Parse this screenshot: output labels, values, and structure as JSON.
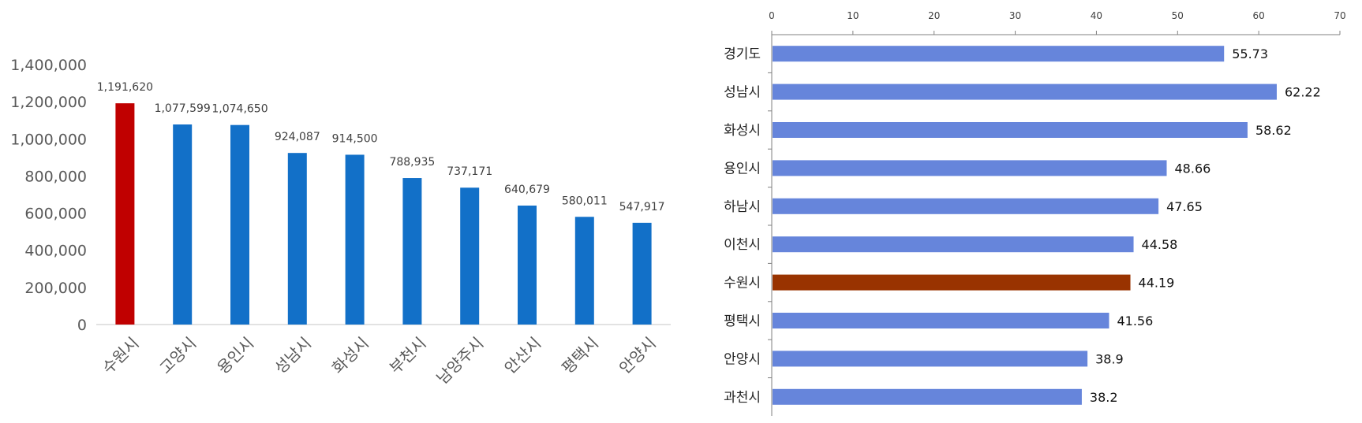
{
  "chart_data": [
    {
      "type": "bar",
      "orientation": "vertical",
      "categories": [
        "수원시",
        "고양시",
        "용인시",
        "성남시",
        "화성시",
        "부천시",
        "남양주시",
        "안산시",
        "평택시",
        "안양시"
      ],
      "values": [
        1191620,
        1077599,
        1074650,
        924087,
        914500,
        788935,
        737171,
        640679,
        580011,
        547917
      ],
      "value_labels": [
        "1,191,620",
        "1,077,599",
        "1,074,650",
        "924,087",
        "914,500",
        "788,935",
        "737,171",
        "640,679",
        "580,011",
        "547,917"
      ],
      "ylim": [
        0,
        1400000
      ],
      "y_ticks": [
        0,
        200000,
        400000,
        600000,
        800000,
        1000000,
        1200000,
        1400000
      ],
      "y_tick_labels": [
        "0",
        "200,000",
        "400,000",
        "600,000",
        "800,000",
        "1,000,000",
        "1,200,000",
        "1,400,000"
      ],
      "highlight_index": 0,
      "colors": {
        "bar": "#1270C8",
        "highlight": "#C00000"
      },
      "grid": false,
      "legend": "none"
    },
    {
      "type": "bar",
      "orientation": "horizontal",
      "categories": [
        "경기도",
        "성남시",
        "화성시",
        "용인시",
        "하남시",
        "이천시",
        "수원시",
        "평택시",
        "안양시",
        "과천시"
      ],
      "values": [
        55.73,
        62.22,
        58.62,
        48.66,
        47.65,
        44.58,
        44.19,
        41.56,
        38.9,
        38.2
      ],
      "value_labels": [
        "55.73",
        "62.22",
        "58.62",
        "48.66",
        "47.65",
        "44.58",
        "44.19",
        "41.56",
        "38.9",
        "38.2"
      ],
      "xlim": [
        0,
        70
      ],
      "x_ticks": [
        0,
        10,
        20,
        30,
        40,
        50,
        60,
        70
      ],
      "x_tick_labels": [
        "0",
        "10",
        "20",
        "30",
        "40",
        "50",
        "60",
        "70"
      ],
      "x_axis_position": "top",
      "highlight_index": 6,
      "colors": {
        "bar": "#6685DB",
        "highlight": "#993300"
      },
      "grid": false,
      "legend": "none"
    }
  ]
}
